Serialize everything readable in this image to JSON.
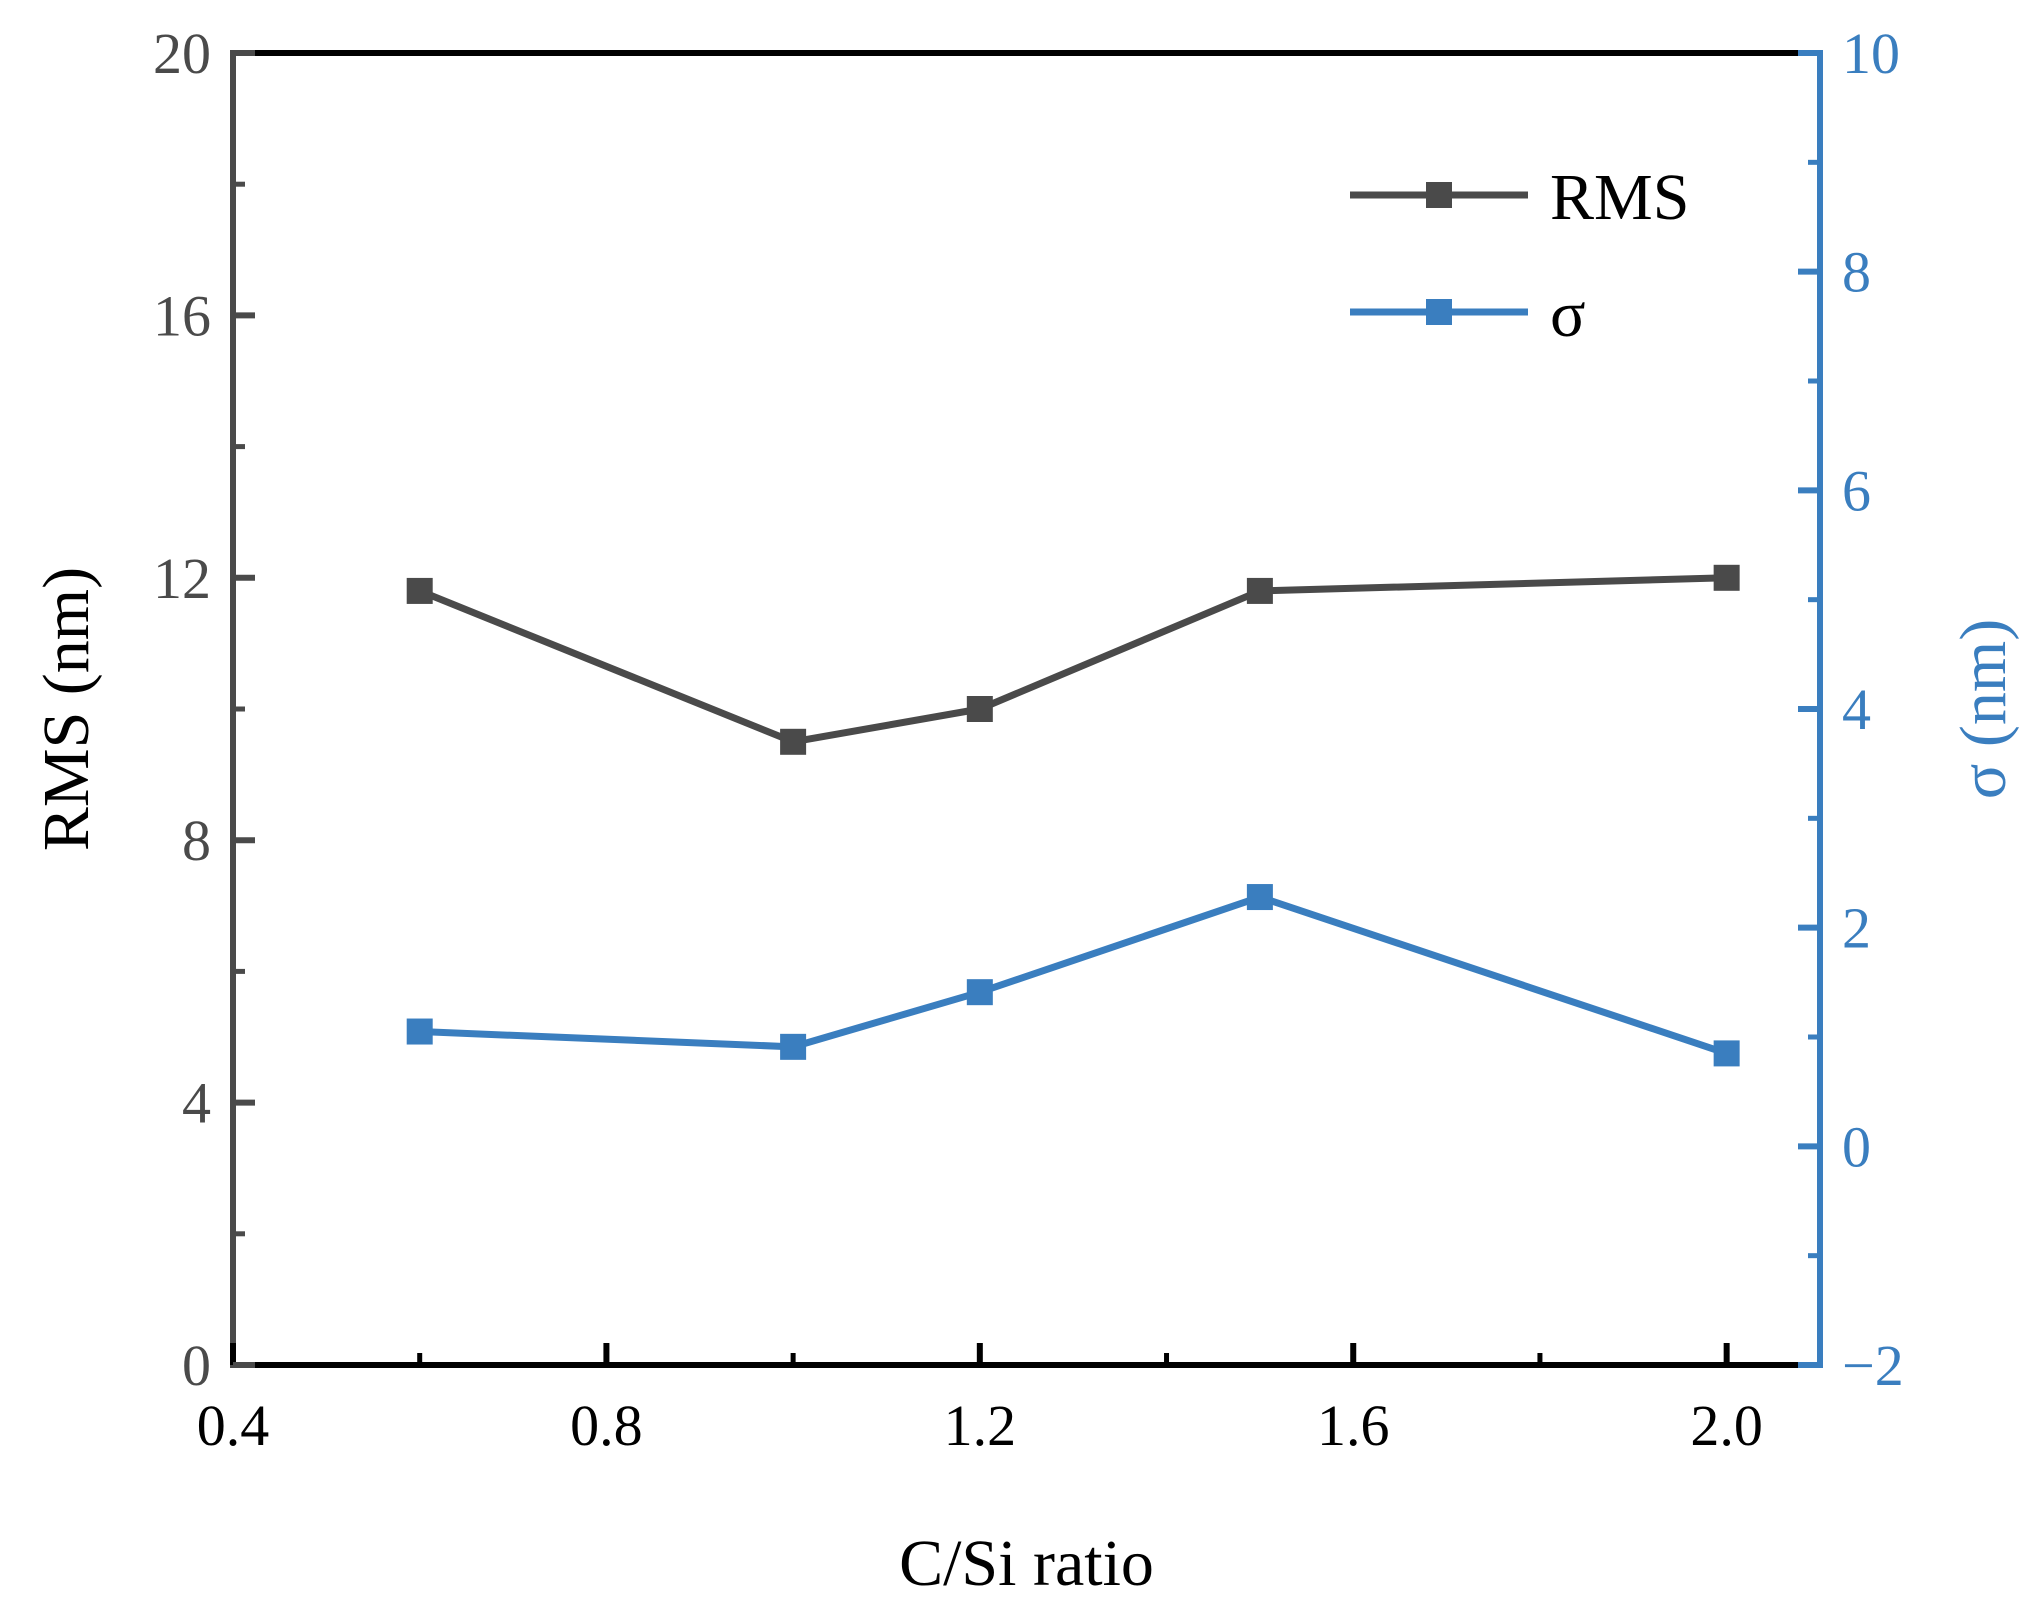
{
  "chart_data": {
    "type": "line",
    "title": "",
    "xlabel": "C/Si ratio",
    "ylabel_left": "RMS (nm)",
    "ylabel_right": "σ (nm)",
    "xlim": [
      0.4,
      2.1
    ],
    "xticks": [
      0.4,
      0.8,
      1.2,
      1.6,
      2.0
    ],
    "xtick_labels": [
      "0.4",
      "0.8",
      "1.2",
      "1.6",
      "2.0"
    ],
    "ylim_left": [
      0,
      20
    ],
    "yticks_left": [
      0,
      4,
      8,
      12,
      16,
      20
    ],
    "ytick_labels_left": [
      "0",
      "4",
      "8",
      "12",
      "16",
      "20"
    ],
    "ylim_right": [
      -2,
      10
    ],
    "yticks_right": [
      -2,
      0,
      2,
      4,
      6,
      8,
      10
    ],
    "ytick_labels_right": [
      "−2",
      "0",
      "2",
      "4",
      "6",
      "8",
      "10"
    ],
    "legend_position": "top-right",
    "grid": false,
    "series": [
      {
        "name": "RMS",
        "axis": "left",
        "color": "#4a4a4a",
        "x": [
          0.6,
          1.0,
          1.2,
          1.5,
          2.0
        ],
        "values": [
          11.8,
          9.5,
          10.0,
          11.8,
          12.0
        ]
      },
      {
        "name": "σ",
        "axis": "right",
        "color": "#3a7ebf",
        "x": [
          0.6,
          1.0,
          1.2,
          1.5,
          2.0
        ],
        "values": [
          1.05,
          0.91,
          1.41,
          2.28,
          0.85
        ]
      }
    ],
    "colors": {
      "left_axis": "#4a4a4a",
      "right_axis": "#3a7ebf",
      "frame": "#000000"
    }
  }
}
